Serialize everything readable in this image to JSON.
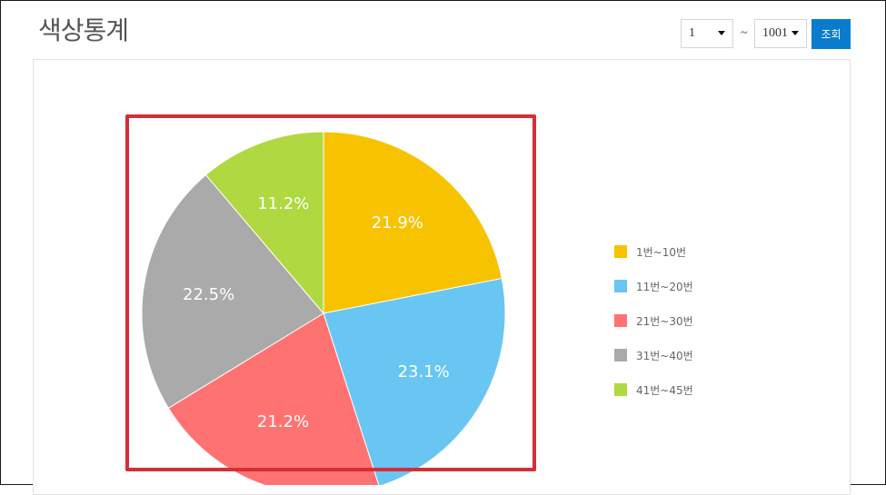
{
  "header": {
    "title": "색상통계",
    "range_start": "1",
    "range_separator": "~",
    "range_end": "1001",
    "search_label": "조회"
  },
  "colors": {
    "accent_button": "#0a7ccd",
    "highlight_box": "#d62e36"
  },
  "chart_data": {
    "type": "pie",
    "legend_position": "right",
    "slices": [
      {
        "label": "1번~10번",
        "value": 21.9,
        "display": "21.9%",
        "color": "#f7c300"
      },
      {
        "label": "11번~20번",
        "value": 23.1,
        "display": "23.1%",
        "color": "#69c6f2"
      },
      {
        "label": "21번~30번",
        "value": 21.2,
        "display": "21.2%",
        "color": "#ff7272"
      },
      {
        "label": "31번~40번",
        "value": 22.5,
        "display": "22.5%",
        "color": "#aaaaaa"
      },
      {
        "label": "41번~45번",
        "value": 11.2,
        "display": "11.2%",
        "color": "#b0d840"
      }
    ]
  }
}
